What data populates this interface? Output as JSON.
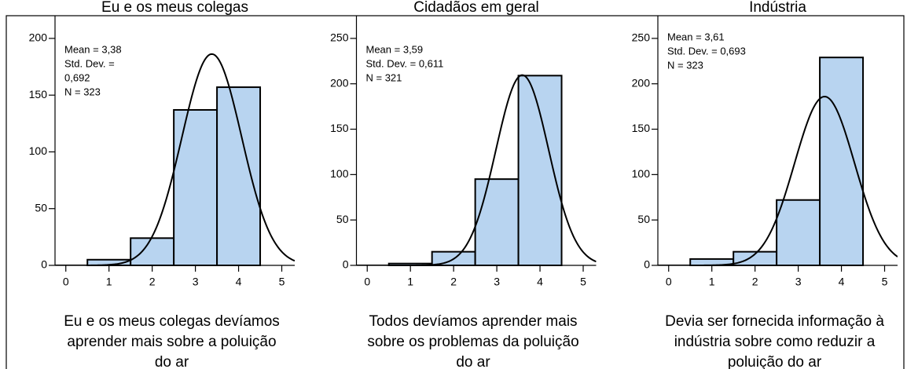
{
  "chart_data": [
    {
      "type": "histogram",
      "title": "Eu e os meus colegas",
      "x_label": [
        "Eu e os meus colegas devíamos",
        "aprender mais sobre a poluição",
        "do ar"
      ],
      "annotation": [
        "Mean = 3,38",
        "Std. Dev. =",
        "0,692",
        "N = 323"
      ],
      "bins": [
        0.5,
        1.5,
        2.5,
        3.5,
        4.5
      ],
      "counts": [
        5,
        24,
        137,
        157
      ],
      "color": "#b8d4f0",
      "curve": {
        "mean": 3.38,
        "std": 0.692,
        "n": 323
      },
      "xlim": [
        -0.25,
        5.3
      ],
      "xticks": [
        0,
        1,
        2,
        3,
        4,
        5
      ],
      "ylim": [
        0,
        220
      ],
      "yticks": [
        0,
        50,
        100,
        150,
        200
      ]
    },
    {
      "type": "histogram",
      "title": "Cidadãos em geral",
      "x_label": [
        "Todos devíamos aprender mais",
        "sobre os problemas da poluição",
        "do ar"
      ],
      "annotation": [
        "Mean = 3,59",
        "Std. Dev. = 0,611",
        "N = 321"
      ],
      "bins": [
        0.5,
        1.5,
        2.5,
        3.5,
        4.5
      ],
      "counts": [
        2,
        15,
        95,
        209
      ],
      "color": "#b8d4f0",
      "curve": {
        "mean": 3.59,
        "std": 0.611,
        "n": 321
      },
      "xlim": [
        -0.25,
        5.3
      ],
      "xticks": [
        0,
        1,
        2,
        3,
        4,
        5
      ],
      "ylim": [
        0,
        275
      ],
      "yticks": [
        0,
        50,
        100,
        150,
        200,
        250
      ]
    },
    {
      "type": "histogram",
      "title": "Indústria",
      "x_label": [
        "Devia ser fornecida informação à",
        "indústria sobre como reduzir a",
        "poluição do ar"
      ],
      "annotation": [
        "Mean = 3,61",
        "Std. Dev. = 0,693",
        "N = 323"
      ],
      "bins": [
        0.5,
        1.5,
        2.5,
        3.5,
        4.5
      ],
      "counts": [
        7,
        15,
        72,
        229
      ],
      "color": "#b8d4f0",
      "curve": {
        "mean": 3.61,
        "std": 0.693,
        "n": 323
      },
      "xlim": [
        -0.25,
        5.3
      ],
      "xticks": [
        0,
        1,
        2,
        3,
        4,
        5
      ],
      "ylim": [
        0,
        275
      ],
      "yticks": [
        0,
        50,
        100,
        150,
        200,
        250
      ]
    }
  ]
}
